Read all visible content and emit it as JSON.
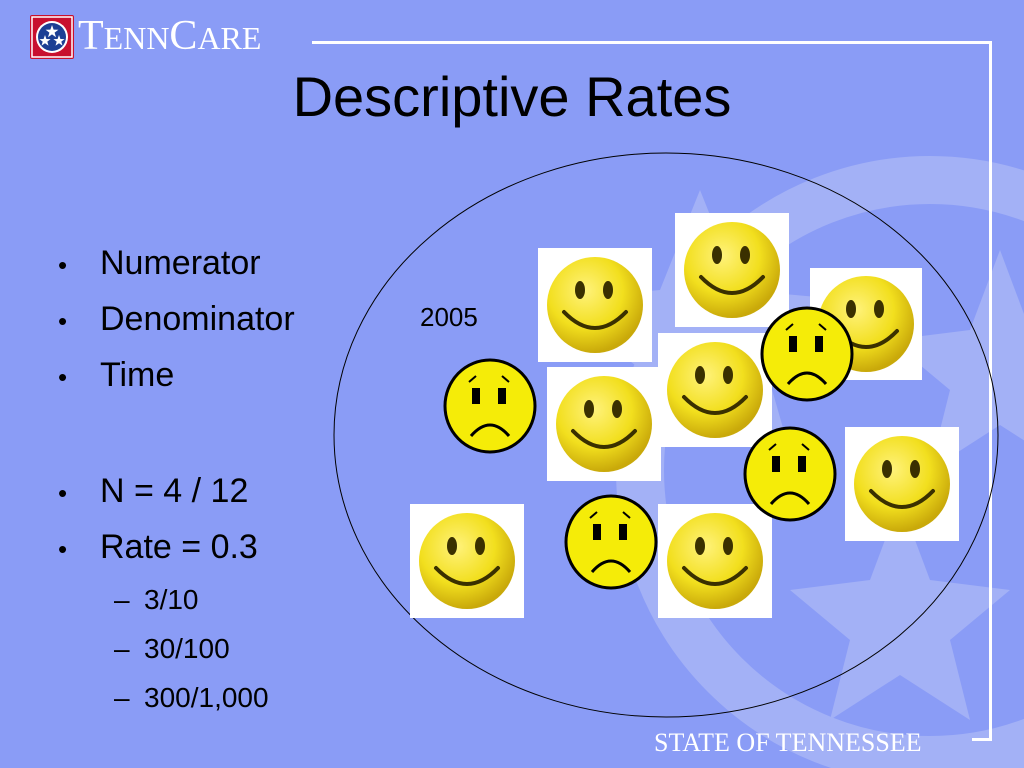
{
  "header": {
    "logo_text_t": "T",
    "logo_text_enn": "ENN",
    "logo_text_c": "C",
    "logo_text_are": "ARE"
  },
  "title": "Descriptive Rates",
  "bullets": [
    {
      "text": "Numerator"
    },
    {
      "text": "Denominator"
    },
    {
      "text": "Time"
    }
  ],
  "bullets2": [
    {
      "text": "N = 4 / 12"
    },
    {
      "text": "Rate = 0.3"
    }
  ],
  "subbullets": [
    {
      "text": "3/10"
    },
    {
      "text": "30/100"
    },
    {
      "text": "300/1,000"
    }
  ],
  "diagram": {
    "year_label": "2005",
    "happy_count": 8,
    "sad_count": 4
  },
  "footer": "STATE OF TENNESSEE",
  "colors": {
    "background": "#8a9cf6",
    "face_yellow": "#f2df1e",
    "seal_red": "#c8102e"
  }
}
